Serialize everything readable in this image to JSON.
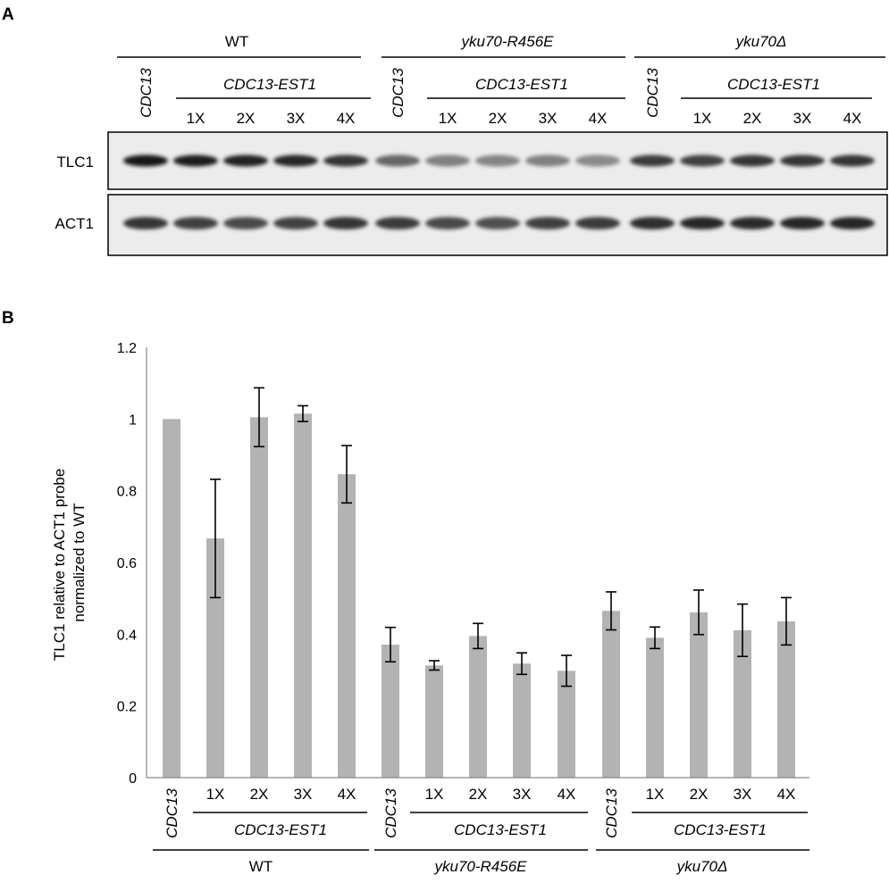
{
  "panel_a": {
    "letter": "A",
    "groups": [
      "WT",
      "yku70-R456E",
      "yku70Δ"
    ],
    "control_label": "CDC13",
    "fusion_label": "CDC13-EST1",
    "doses": [
      "1X",
      "2X",
      "3X",
      "4X"
    ],
    "rows": [
      {
        "name": "TLC1",
        "band_intensity": [
          1.0,
          0.95,
          0.93,
          0.92,
          0.85,
          0.62,
          0.5,
          0.48,
          0.5,
          0.45,
          0.82,
          0.8,
          0.85,
          0.85,
          0.85
        ]
      },
      {
        "name": "ACT1",
        "band_intensity": [
          0.85,
          0.8,
          0.75,
          0.78,
          0.85,
          0.82,
          0.75,
          0.72,
          0.8,
          0.82,
          0.88,
          0.92,
          0.9,
          0.92,
          0.92
        ]
      }
    ]
  },
  "panel_b": {
    "letter": "B"
  },
  "chart_data": {
    "type": "bar",
    "title": "",
    "xlabel": "",
    "ylabel": "TLC1 relative to ACT1 probe normalized to WT",
    "ylim": [
      0,
      1.2
    ],
    "yticks": [
      "0",
      "0.2",
      "0.4",
      "0.6",
      "0.8",
      "1",
      "1.2"
    ],
    "grid": false,
    "bar_color": "#b3b3b3",
    "categories": [
      "CDC13",
      "1X",
      "2X",
      "3X",
      "4X",
      "CDC13",
      "1X",
      "2X",
      "3X",
      "4X",
      "CDC13",
      "1X",
      "2X",
      "3X",
      "4X"
    ],
    "values": [
      1.0,
      0.667,
      1.005,
      1.015,
      0.846,
      0.371,
      0.313,
      0.395,
      0.318,
      0.298,
      0.465,
      0.39,
      0.461,
      0.411,
      0.436
    ],
    "error": [
      0,
      0.165,
      0.082,
      0.022,
      0.08,
      0.048,
      0.013,
      0.035,
      0.03,
      0.043,
      0.053,
      0.03,
      0.062,
      0.073,
      0.066
    ],
    "group_labels": [
      "WT",
      "yku70-R456E",
      "yku70Δ"
    ],
    "sub_group_label": "CDC13-EST1"
  }
}
